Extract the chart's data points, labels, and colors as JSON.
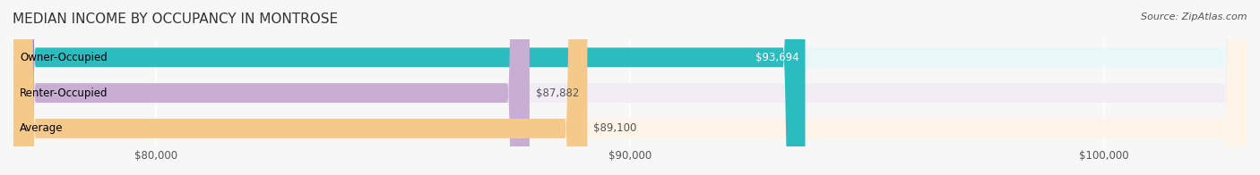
{
  "title": "MEDIAN INCOME BY OCCUPANCY IN MONTROSE",
  "source": "Source: ZipAtlas.com",
  "categories": [
    "Owner-Occupied",
    "Renter-Occupied",
    "Average"
  ],
  "values": [
    93694,
    87882,
    89100
  ],
  "bar_colors": [
    "#2bbcbf",
    "#c9aed4",
    "#f5c98a"
  ],
  "bar_bg_colors": [
    "#e8f8f8",
    "#f2edf5",
    "#fef5e8"
  ],
  "value_labels": [
    "$93,694",
    "$87,882",
    "$89,100"
  ],
  "xlim_min": 77000,
  "xlim_max": 103000,
  "xticks": [
    80000,
    90000,
    100000
  ],
  "xtick_labels": [
    "$80,000",
    "$90,000",
    "$100,000"
  ],
  "bar_height": 0.55,
  "bg_color": "#f7f7f7",
  "title_fontsize": 11,
  "label_fontsize": 8.5,
  "value_fontsize": 8.5,
  "source_fontsize": 8
}
